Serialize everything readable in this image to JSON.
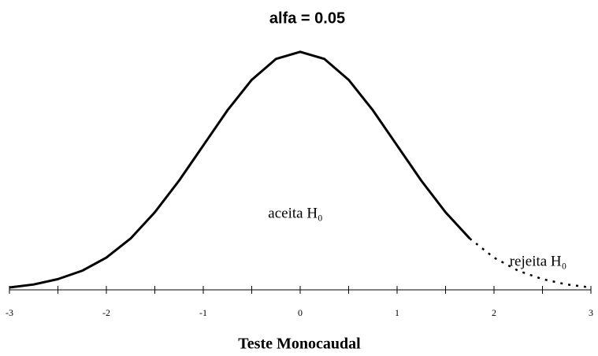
{
  "chart_data": {
    "type": "line",
    "title": "alfa = 0.05",
    "xlabel": "Teste Monocaudal",
    "annotations": [
      "aceita H₀",
      "rejeita H₀"
    ],
    "x": [
      -3,
      -2.75,
      -2.5,
      -2.25,
      -2,
      -1.75,
      -1.5,
      -1.25,
      -1,
      -0.75,
      -0.5,
      -0.25,
      0,
      0.25,
      0.5,
      0.75,
      1,
      1.25,
      1.5,
      1.75,
      2,
      2.25,
      2.5,
      2.75,
      3
    ],
    "series": [
      {
        "name": "aceita",
        "color": "#000000",
        "dashed": false,
        "values": [
          0.004,
          0.009,
          0.018,
          0.032,
          0.054,
          0.086,
          0.13,
          0.183,
          0.242,
          0.301,
          0.352,
          0.387,
          0.399,
          0.387,
          0.352,
          0.301,
          0.242,
          0.183,
          0.13,
          0.086,
          null,
          null,
          null,
          null,
          null
        ]
      },
      {
        "name": "rejeita",
        "color": "#000000",
        "dashed": true,
        "values": [
          null,
          null,
          null,
          null,
          null,
          null,
          null,
          null,
          null,
          null,
          null,
          null,
          null,
          null,
          null,
          null,
          null,
          null,
          null,
          0.086,
          0.054,
          0.032,
          0.018,
          0.009,
          0.004
        ]
      }
    ],
    "xlim": [
      -3,
      3
    ],
    "xticks": [
      -3,
      -2,
      -1,
      0,
      1,
      2,
      3
    ],
    "xminorticks": [
      -2.5,
      -1.5,
      -0.5,
      0.5,
      1.5,
      2.5
    ],
    "ylim": [
      0,
      0.4
    ]
  }
}
